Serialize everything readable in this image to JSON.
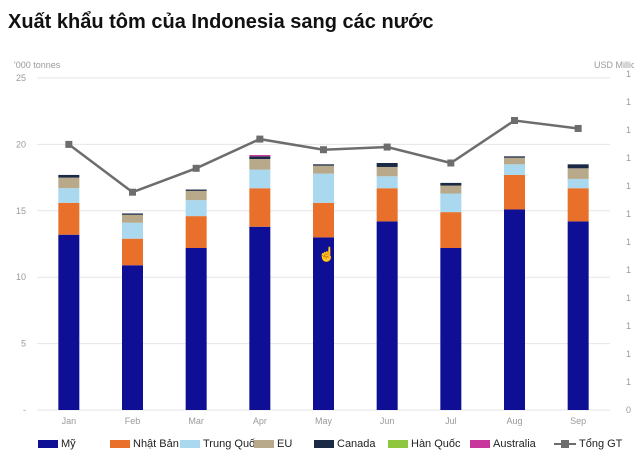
{
  "title": "Xuất khẩu tôm của Indonesia sang các nước",
  "chart_data": {
    "type": "bar",
    "stacked": true,
    "categories": [
      "Jan",
      "Feb",
      "Mar",
      "Apr",
      "May",
      "Jun",
      "Jul",
      "Aug",
      "Sep"
    ],
    "left_axis": {
      "unit_label": "'000 tonnes",
      "range": [
        0,
        25
      ],
      "ticks": [
        "-",
        "5",
        "10",
        "15",
        "20",
        "25"
      ]
    },
    "right_axis": {
      "unit_label": "USD Millio",
      "range": [
        0,
        25
      ],
      "ticks": [
        "0",
        "1",
        "1",
        "1",
        "1",
        "1",
        "1",
        "1",
        "1",
        "1",
        "1",
        "1",
        "1"
      ]
    },
    "grid": true,
    "legend_position": "bottom",
    "series": [
      {
        "name": "Mỹ",
        "color": "#0f0f96",
        "values": [
          13.2,
          10.9,
          12.2,
          13.8,
          13.0,
          14.2,
          12.2,
          15.1,
          14.2
        ]
      },
      {
        "name": "Nhật Bản",
        "color": "#e8702a",
        "values": [
          2.4,
          2.0,
          2.4,
          2.9,
          2.6,
          2.5,
          2.7,
          2.6,
          2.5
        ]
      },
      {
        "name": "Trung Quốc",
        "color": "#a9d8ef",
        "values": [
          1.1,
          1.2,
          1.2,
          1.4,
          2.2,
          0.9,
          1.4,
          0.8,
          0.7
        ]
      },
      {
        "name": "EU",
        "color": "#b8a98a",
        "values": [
          0.8,
          0.6,
          0.7,
          0.8,
          0.6,
          0.7,
          0.6,
          0.5,
          0.8
        ]
      },
      {
        "name": "Canada",
        "color": "#1b2a44",
        "values": [
          0.2,
          0.1,
          0.1,
          0.2,
          0.1,
          0.3,
          0.2,
          0.1,
          0.3
        ]
      },
      {
        "name": "Hàn Quốc",
        "color": "#8fc63f",
        "values": [
          0.0,
          0.0,
          0.0,
          0.0,
          0.0,
          0.0,
          0.0,
          0.0,
          0.0
        ]
      },
      {
        "name": "Australia",
        "color": "#c8379b",
        "values": [
          0.0,
          0.0,
          0.0,
          0.1,
          0.0,
          0.0,
          0.0,
          0.0,
          0.0
        ]
      }
    ],
    "line_series": {
      "name": "Tổng GT",
      "color": "#6d6d6d",
      "axis": "right",
      "values": [
        20.0,
        16.4,
        18.2,
        20.4,
        19.6,
        19.8,
        18.6,
        21.8,
        21.2
      ]
    }
  }
}
